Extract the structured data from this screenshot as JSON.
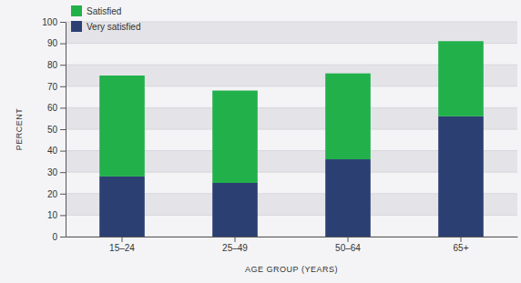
{
  "chart_data": {
    "type": "bar",
    "stacked": true,
    "categories": [
      "15–24",
      "25–49",
      "50–64",
      "65+"
    ],
    "series": [
      {
        "name": "Very satisfied",
        "color": "#2b3f72",
        "values": [
          28,
          25,
          36,
          56
        ]
      },
      {
        "name": "Satisfied",
        "color": "#22b04b",
        "values": [
          47,
          43,
          40,
          35
        ]
      }
    ],
    "x_label": "AGE GROUP (YEARS)",
    "y_label": "PERCENT",
    "ylim": [
      0,
      100
    ],
    "yticks": [
      0,
      10,
      20,
      30,
      40,
      50,
      60,
      70,
      80,
      90,
      100
    ],
    "grid": true,
    "legend": "top-left"
  }
}
